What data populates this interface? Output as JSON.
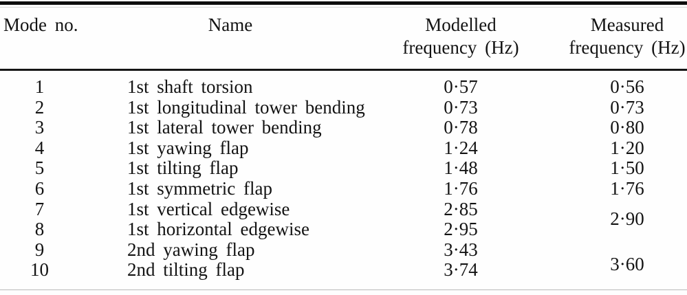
{
  "table": {
    "title_semantic": "Modelled vs measured modal frequencies",
    "header": {
      "mode": "Mode no.",
      "name": "Name",
      "modelled_line1": "Modelled",
      "modelled_line2": "frequency (Hz)",
      "measured_line1": "Measured",
      "measured_line2": "frequency (Hz)"
    },
    "rows": [
      {
        "mode": "1",
        "name": "1st shaft torsion",
        "modelled": "0·57",
        "measured": "0·56"
      },
      {
        "mode": "2",
        "name": "1st longitudinal tower bending",
        "modelled": "0·73",
        "measured": "0·73"
      },
      {
        "mode": "3",
        "name": "1st lateral tower bending",
        "modelled": "0·78",
        "measured": "0·80"
      },
      {
        "mode": "4",
        "name": "1st yawing flap",
        "modelled": "1·24",
        "measured": "1·20"
      },
      {
        "mode": "5",
        "name": "1st tilting flap",
        "modelled": "1·48",
        "measured": "1·50"
      },
      {
        "mode": "6",
        "name": "1st symmetric flap",
        "modelled": "1·76",
        "measured": "1·76"
      },
      {
        "mode": "7",
        "name": "1st vertical edgewise",
        "modelled": "2·85",
        "measured": "2·90",
        "measured_spans_rows": 2
      },
      {
        "mode": "8",
        "name": "1st horizontal edgewise",
        "modelled": "2·95",
        "measured": null
      },
      {
        "mode": "9",
        "name": "2nd yawing flap",
        "modelled": "3·43",
        "measured": "3·60",
        "measured_spans_rows": 2
      },
      {
        "mode": "10",
        "name": "2nd tilting flap",
        "modelled": "3·74",
        "measured": null
      }
    ]
  }
}
